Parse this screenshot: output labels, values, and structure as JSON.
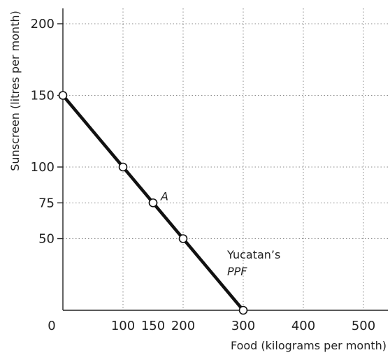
{
  "chart_data": {
    "type": "line",
    "xlabel": "Food (kilograms per month)",
    "ylabel": "Sunscreen (litres per month)",
    "origin_label": "0",
    "xlim": [
      0,
      550
    ],
    "ylim": [
      0,
      215
    ],
    "xticks": [
      100,
      150,
      200,
      300,
      400,
      500
    ],
    "xtick_labels": [
      "100",
      "150",
      "200",
      "300",
      "400",
      "500"
    ],
    "yticks": [
      50,
      75,
      100,
      150,
      200
    ],
    "ytick_labels": [
      "50",
      "75",
      "100",
      "150",
      "200"
    ],
    "xgrid": [
      100,
      200,
      300,
      400,
      500
    ],
    "ygrid": [
      50,
      75,
      100,
      150,
      200
    ],
    "grid": true,
    "series": [
      {
        "x": [
          0,
          100,
          150,
          200,
          300
        ],
        "y": [
          150,
          100,
          75,
          50,
          0
        ]
      }
    ],
    "points": [
      {
        "x": 0,
        "y": 150,
        "label": ""
      },
      {
        "x": 100,
        "y": 100,
        "label": ""
      },
      {
        "x": 150,
        "y": 75,
        "label": "A"
      },
      {
        "x": 200,
        "y": 50,
        "label": ""
      },
      {
        "x": 300,
        "y": 0,
        "label": ""
      }
    ],
    "curve_label": {
      "line1": "Yucatan’s",
      "line2": "PPF"
    },
    "colors": {
      "line": "#111111",
      "grid": "#8a8a8a",
      "marker_fill": "#ffffff"
    }
  }
}
